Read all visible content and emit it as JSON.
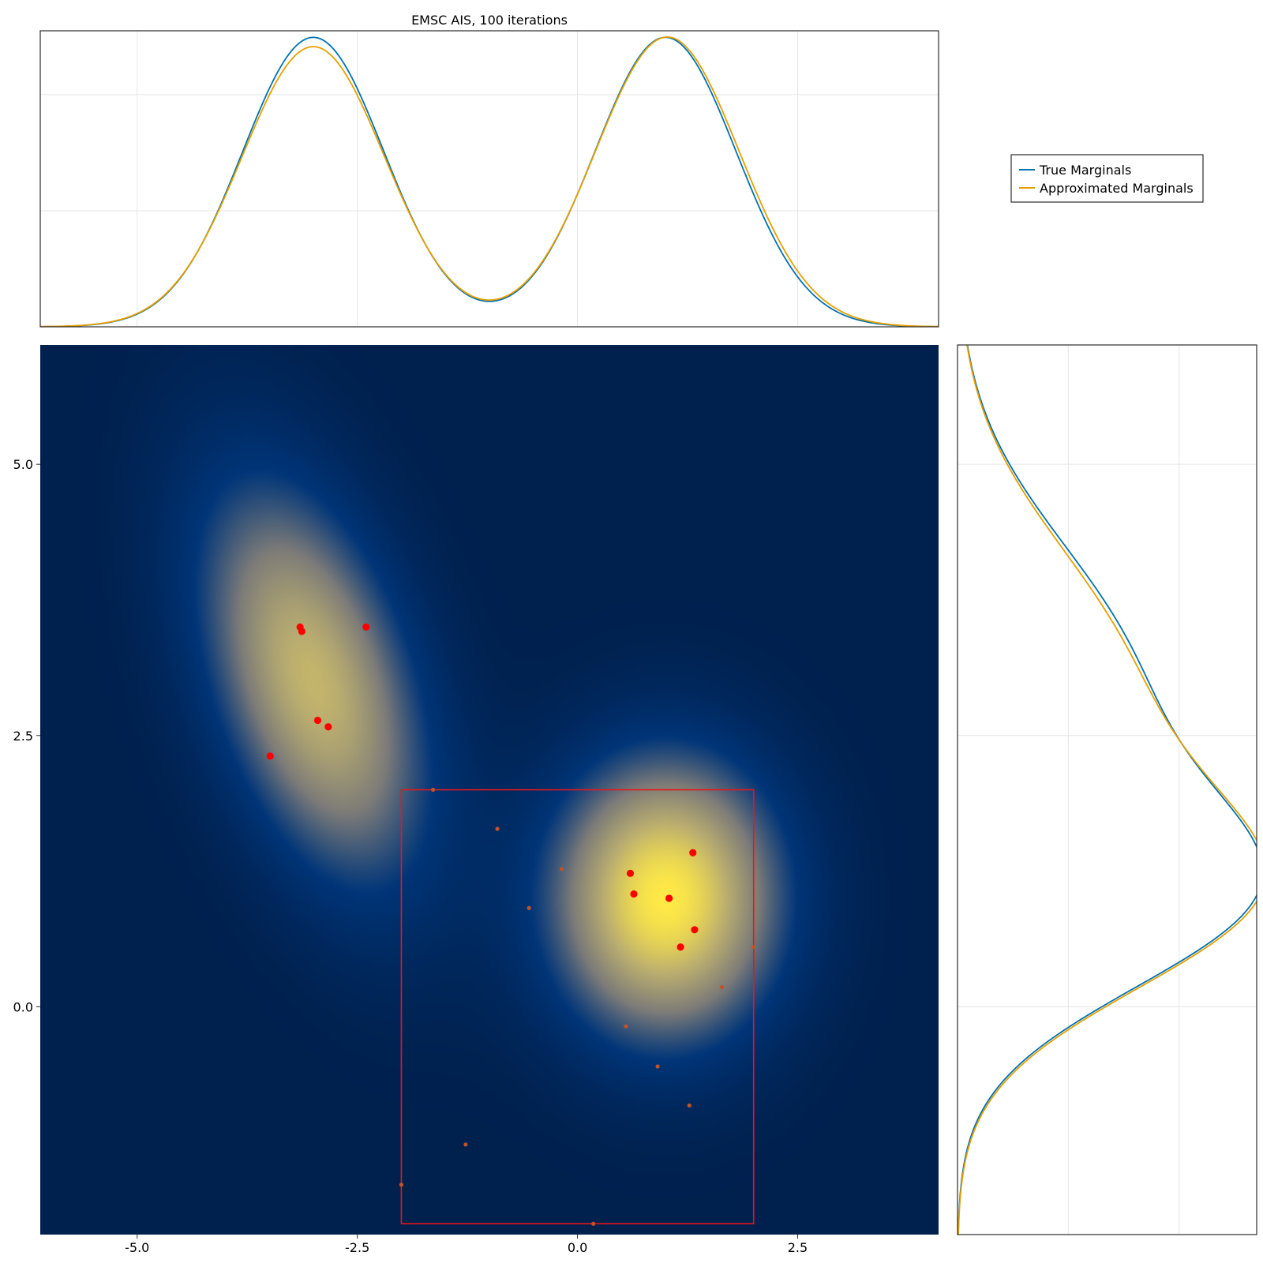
{
  "chart_data": [
    {
      "panel": "top-marginal",
      "type": "line",
      "title": "EMSC AIS, 100 iterations",
      "xlim": [
        -6.1,
        4.1
      ],
      "ylim": [
        0,
        0.255
      ],
      "x_ticks": [
        "-5.0",
        "-2.5",
        "0.0",
        "2.5"
      ],
      "grid": true,
      "colors": {
        "true": "#0072B2",
        "approx": "#E69F00"
      },
      "series": [
        {
          "name": "True Marginals",
          "components": [
            {
              "weight": 0.5,
              "mean": -3.0,
              "sd": 0.8
            },
            {
              "weight": 0.5,
              "mean": 1.0,
              "sd": 0.8
            }
          ]
        },
        {
          "name": "Approximated Marginals",
          "components": [
            {
              "weight": 0.49,
              "mean": -3.0,
              "sd": 0.81
            },
            {
              "weight": 0.51,
              "mean": 1.02,
              "sd": 0.815
            }
          ]
        }
      ]
    },
    {
      "panel": "main-density",
      "type": "heatmap",
      "xlim": [
        -6.1,
        4.1
      ],
      "ylim": [
        -2.1,
        6.1
      ],
      "x_ticks": [
        "-5.0",
        "-2.5",
        "0.0",
        "2.5"
      ],
      "y_ticks": [
        "5.0",
        "2.5",
        "0.0"
      ],
      "colormap": "cividis",
      "components": [
        {
          "weight": 0.5,
          "mean": [
            -3.0,
            3.0
          ],
          "sx": 0.9,
          "sy": 1.3,
          "rho": -0.45
        },
        {
          "weight": 0.5,
          "mean": [
            1.0,
            1.0
          ],
          "sx": 0.9,
          "sy": 0.9,
          "rho": 0.0
        }
      ],
      "box": {
        "x": [
          -2.0,
          2.0
        ],
        "y": [
          -2.0,
          2.0
        ],
        "color": "#e8161b"
      },
      "samples": [
        {
          "x": -3.15,
          "y": 3.5
        },
        {
          "x": -3.13,
          "y": 3.46
        },
        {
          "x": -2.4,
          "y": 3.5
        },
        {
          "x": -2.95,
          "y": 2.64
        },
        {
          "x": -2.83,
          "y": 2.58
        },
        {
          "x": -3.49,
          "y": 2.31
        },
        {
          "x": 1.31,
          "y": 1.42
        },
        {
          "x": 0.6,
          "y": 1.23
        },
        {
          "x": 0.64,
          "y": 1.04
        },
        {
          "x": 1.04,
          "y": 1.0
        },
        {
          "x": 1.33,
          "y": 0.71
        },
        {
          "x": 1.17,
          "y": 0.55
        }
      ],
      "particles": [
        {
          "x": -1.64,
          "y": 2.0
        },
        {
          "x": -0.91,
          "y": 1.64
        },
        {
          "x": -0.18,
          "y": 1.27
        },
        {
          "x": -0.55,
          "y": 0.91
        },
        {
          "x": 2.0,
          "y": 0.55
        },
        {
          "x": 1.64,
          "y": 0.18
        },
        {
          "x": 0.55,
          "y": -0.18
        },
        {
          "x": 0.91,
          "y": -0.55
        },
        {
          "x": 1.27,
          "y": -0.91
        },
        {
          "x": -1.27,
          "y": -1.27
        },
        {
          "x": -2.0,
          "y": -1.64
        },
        {
          "x": 0.18,
          "y": -2.0
        }
      ],
      "sample_color": "#ff0000",
      "particle_color": "#c0522a"
    },
    {
      "panel": "right-marginal",
      "type": "line",
      "ylim": [
        -2.1,
        6.1
      ],
      "xlim": [
        0,
        0.27
      ],
      "grid": true,
      "series": [
        {
          "name": "True Marginals",
          "components": [
            {
              "weight": 0.5,
              "mean": 3.0,
              "sd": 1.3
            },
            {
              "weight": 0.5,
              "mean": 1.0,
              "sd": 0.9
            }
          ]
        },
        {
          "name": "Approximated Marginals",
          "components": [
            {
              "weight": 0.49,
              "mean": 2.97,
              "sd": 1.31
            },
            {
              "weight": 0.51,
              "mean": 1.0,
              "sd": 0.91
            }
          ]
        }
      ]
    }
  ],
  "legend": {
    "placement": "top-right",
    "items": [
      {
        "label": "True Marginals",
        "color": "#0072B2"
      },
      {
        "label": "Approximated Marginals",
        "color": "#E69F00"
      }
    ]
  }
}
